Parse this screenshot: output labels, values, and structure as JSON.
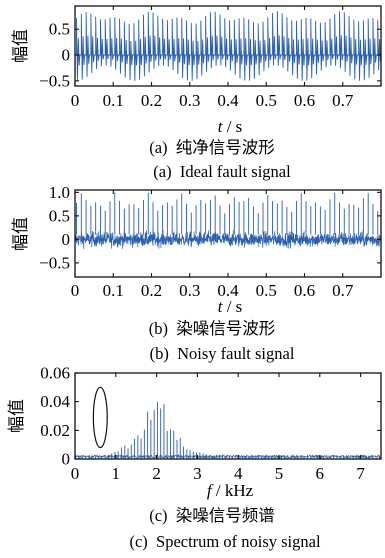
{
  "chart_data": [
    {
      "type": "line",
      "panel": "a",
      "ylabel": "幅值",
      "xlabel_var": "t",
      "xlabel_unit": "s",
      "xlim": [
        0,
        0.8
      ],
      "ylim": [
        -0.6,
        0.95
      ],
      "x_ticks": [
        "0",
        "0.1",
        "0.2",
        "0.3",
        "0.4",
        "0.5",
        "0.6",
        "0.7"
      ],
      "y_ticks": [
        "0.5",
        "0",
        "−0.5"
      ],
      "y_tick_values": [
        0.5,
        0,
        -0.5
      ],
      "caption_cn": "(a)  纯净信号波形",
      "caption_en": "(a)  Ideal fault signal",
      "impulse_period_s": 0.0125,
      "peak_range": [
        0.58,
        0.85
      ],
      "trough_range": [
        -0.2,
        -0.5
      ]
    },
    {
      "type": "line",
      "panel": "b",
      "ylabel": "幅值",
      "xlabel_var": "t",
      "xlabel_unit": "s",
      "xlim": [
        0,
        0.8
      ],
      "ylim": [
        -0.8,
        1.05
      ],
      "x_ticks": [
        "0",
        "0.1",
        "0.2",
        "0.3",
        "0.4",
        "0.5",
        "0.6",
        "0.7"
      ],
      "y_ticks": [
        "1.0",
        "0.5",
        "0",
        "−0.5"
      ],
      "y_tick_values": [
        1.0,
        0.5,
        0,
        -0.5
      ],
      "caption_cn": "(b)  染噪信号波形",
      "caption_en": "(b)  Noisy fault signal",
      "impulse_period_s": 0.0125,
      "peak_range": [
        0.55,
        1.0
      ],
      "noise_amplitude": 0.28
    },
    {
      "type": "line",
      "panel": "c",
      "ylabel": "幅值",
      "xlabel_var": "f",
      "xlabel_unit": "kHz",
      "xlim": [
        0,
        7.5
      ],
      "ylim": [
        0,
        0.06
      ],
      "x_ticks": [
        "0",
        "1",
        "2",
        "3",
        "4",
        "5",
        "6",
        "7"
      ],
      "y_ticks": [
        "0.06",
        "0.04",
        "0.02",
        "0"
      ],
      "y_tick_values": [
        0.06,
        0.04,
        0.02,
        0
      ],
      "caption_cn": "(c)  染噪信号频谱",
      "caption_en": "(c)  Spectrum of noisy signal",
      "peak_center_khz": 2.0,
      "peak_height": 0.04,
      "ellipse_center": [
        0.62,
        0.029
      ],
      "ellipse_half_width_khz": 0.17,
      "ellipse_half_height": 0.021
    }
  ]
}
